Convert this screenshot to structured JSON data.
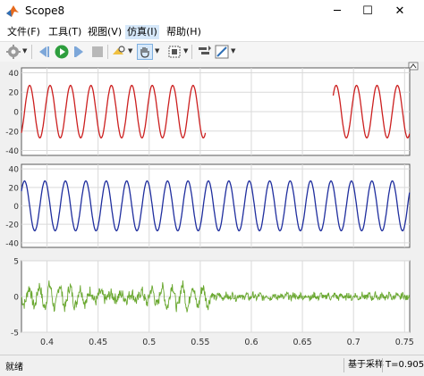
{
  "window": {
    "title": "Scope8",
    "minimize": "─",
    "maximize": "☐",
    "close": "✕"
  },
  "menu": [
    {
      "label": "文件(F)"
    },
    {
      "label": "工具(T)"
    },
    {
      "label": "视图(V)"
    },
    {
      "label": "仿真(I)"
    },
    {
      "label": "帮助(H)"
    }
  ],
  "toolbar": {
    "icons": [
      "gear-settings-icon",
      "step-back-icon",
      "run-icon",
      "step-forward-icon",
      "stop-icon",
      "highlight-icon",
      "pan-hand-icon",
      "fit-icon",
      "measure-icon",
      "style-icon"
    ]
  },
  "status": {
    "left": "就绪",
    "sample": "基于采样",
    "time": "T=0.905"
  },
  "chart_data": [
    {
      "type": "line",
      "x": [
        0.375,
        0.755
      ],
      "ylim": [
        -45,
        45
      ],
      "yticks": [
        40,
        20,
        0,
        -20,
        -40
      ],
      "series": [
        {
          "color": "#cc1f1f",
          "values": "sinusoid, amplitude ≈ 27, period ≈ 0.02 s; shown 0.375–0.555 and 0.68–0.755, absent 0.555–0.68"
        }
      ]
    },
    {
      "type": "line",
      "x": [
        0.375,
        0.755
      ],
      "ylim": [
        -45,
        45
      ],
      "yticks": [
        40,
        20,
        0,
        -20,
        -40
      ],
      "series": [
        {
          "color": "#1f2e9e",
          "values": "sinusoid, amplitude ≈ 27, period ≈ 0.02 s, continuous 0.375–0.755"
        }
      ]
    },
    {
      "type": "line",
      "x": [
        0.375,
        0.755
      ],
      "ylim": [
        -5,
        5
      ],
      "yticks": [
        5,
        0,
        -5
      ],
      "xticks": [
        "0.4",
        "0.45",
        "0.5",
        "0.55",
        "0.6",
        "0.65",
        "0.7",
        "0.75"
      ],
      "series": [
        {
          "color": "#6aa830",
          "values": "noisy oscillation amplitude ≈ 2 for t < 0.56, small noise ≈ 0.4 after"
        }
      ]
    }
  ]
}
